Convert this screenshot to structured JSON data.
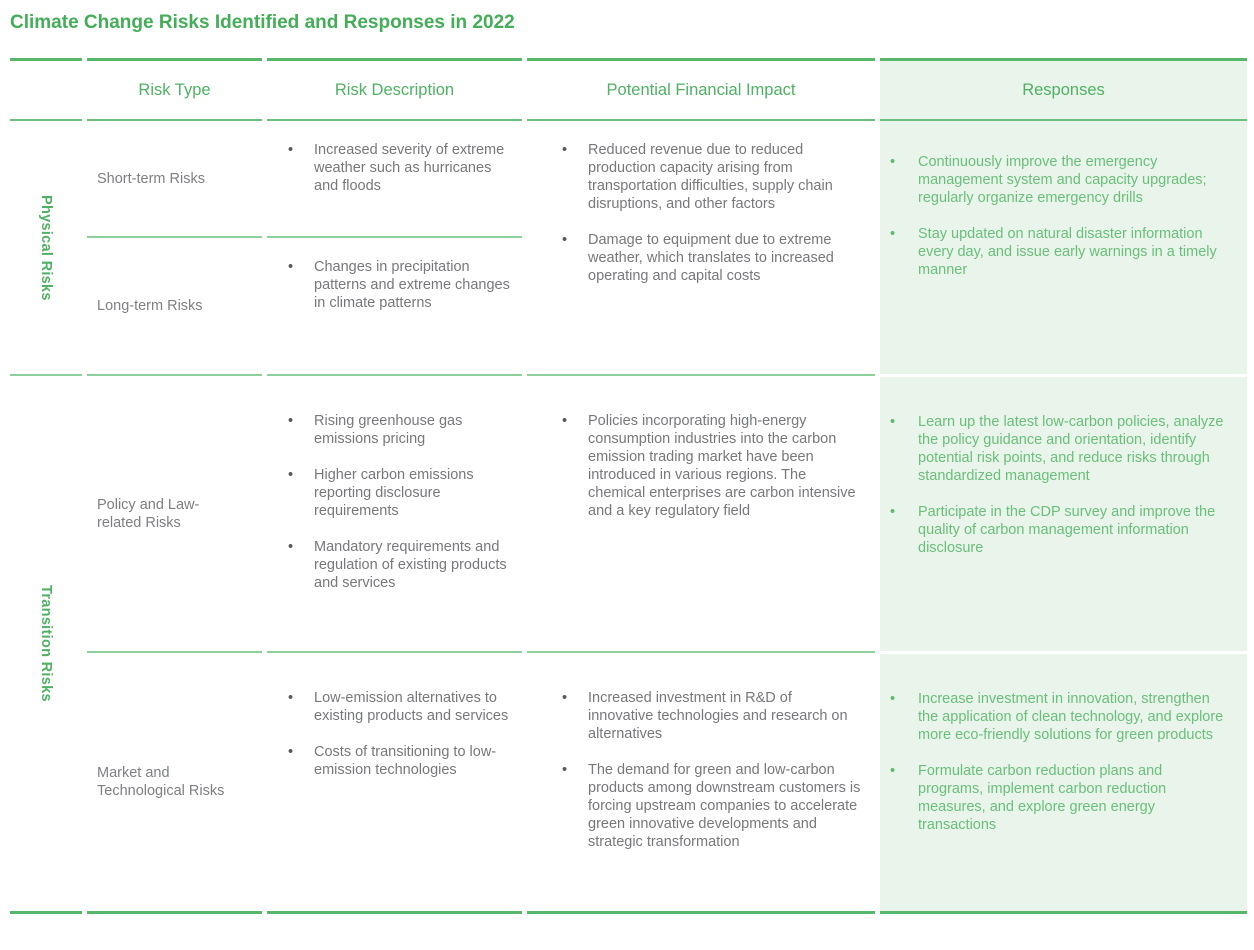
{
  "title": "Climate Change Risks Identified and Responses in 2022",
  "headers": {
    "risk_type": "Risk Type",
    "risk_description": "Risk Description",
    "financial_impact": "Potential Financial Impact",
    "responses": "Responses"
  },
  "sections": [
    {
      "label": "Physical Risks",
      "rows": [
        {
          "type": "Short-term Risks",
          "descriptions": [
            "Increased severity of extreme weather such as hurricanes and floods"
          ]
        },
        {
          "type": "Long-term Risks",
          "descriptions": [
            "Changes in precipitation patterns and extreme changes in climate patterns"
          ]
        }
      ],
      "impacts": [
        "Reduced revenue due to reduced production capacity arising from transportation difficulties, supply chain disruptions, and other factors",
        "Damage to equipment due to extreme weather, which translates to increased operating and capital costs"
      ],
      "responses": [
        "Continuously improve the emergency management system and capacity upgrades; regularly organize emergency drills",
        "Stay updated on natural disaster information every day, and issue early warnings in a timely manner"
      ]
    },
    {
      "label": "Transition Risks",
      "rows": [
        {
          "type": "Policy and Law-related Risks",
          "descriptions": [
            "Rising greenhouse gas emissions pricing",
            "Higher carbon emissions reporting disclosure requirements",
            "Mandatory requirements and regulation of existing products and services"
          ],
          "impacts": [
            "Policies incorporating high-energy consumption industries into the carbon emission trading market have been introduced in various regions. The chemical enterprises are carbon intensive and a key regulatory field"
          ],
          "responses": [
            "Learn up the latest low-carbon policies, analyze the policy guidance and orientation, identify potential risk points, and reduce risks through standardized management",
            "Participate in the CDP survey and improve the quality of carbon management information disclosure"
          ]
        },
        {
          "type": "Market and Technological Risks",
          "descriptions": [
            "Low-emission alternatives to existing products and services",
            "Costs of transitioning to low-emission technologies"
          ],
          "impacts": [
            "Increased investment in R&D of innovative technologies and research on alternatives",
            "The demand for green and low-carbon products among downstream customers is forcing upstream companies to accelerate green innovative developments and strategic transformation"
          ],
          "responses": [
            "Increase investment in innovation, strengthen the application of clean technology, and explore more eco-friendly solutions for green products",
            "Formulate carbon reduction plans and programs, implement carbon reduction measures, and explore green energy transactions"
          ]
        }
      ]
    }
  ],
  "colors": {
    "accent_green": "#4fb163",
    "title_green": "#43ad57",
    "response_text_green": "#6abf7b",
    "light_green_panel_bg": "#e9f4ea",
    "body_text_gray": "#77787b",
    "rule_green": "#57b86b",
    "separator_green": "#8ed09c"
  }
}
